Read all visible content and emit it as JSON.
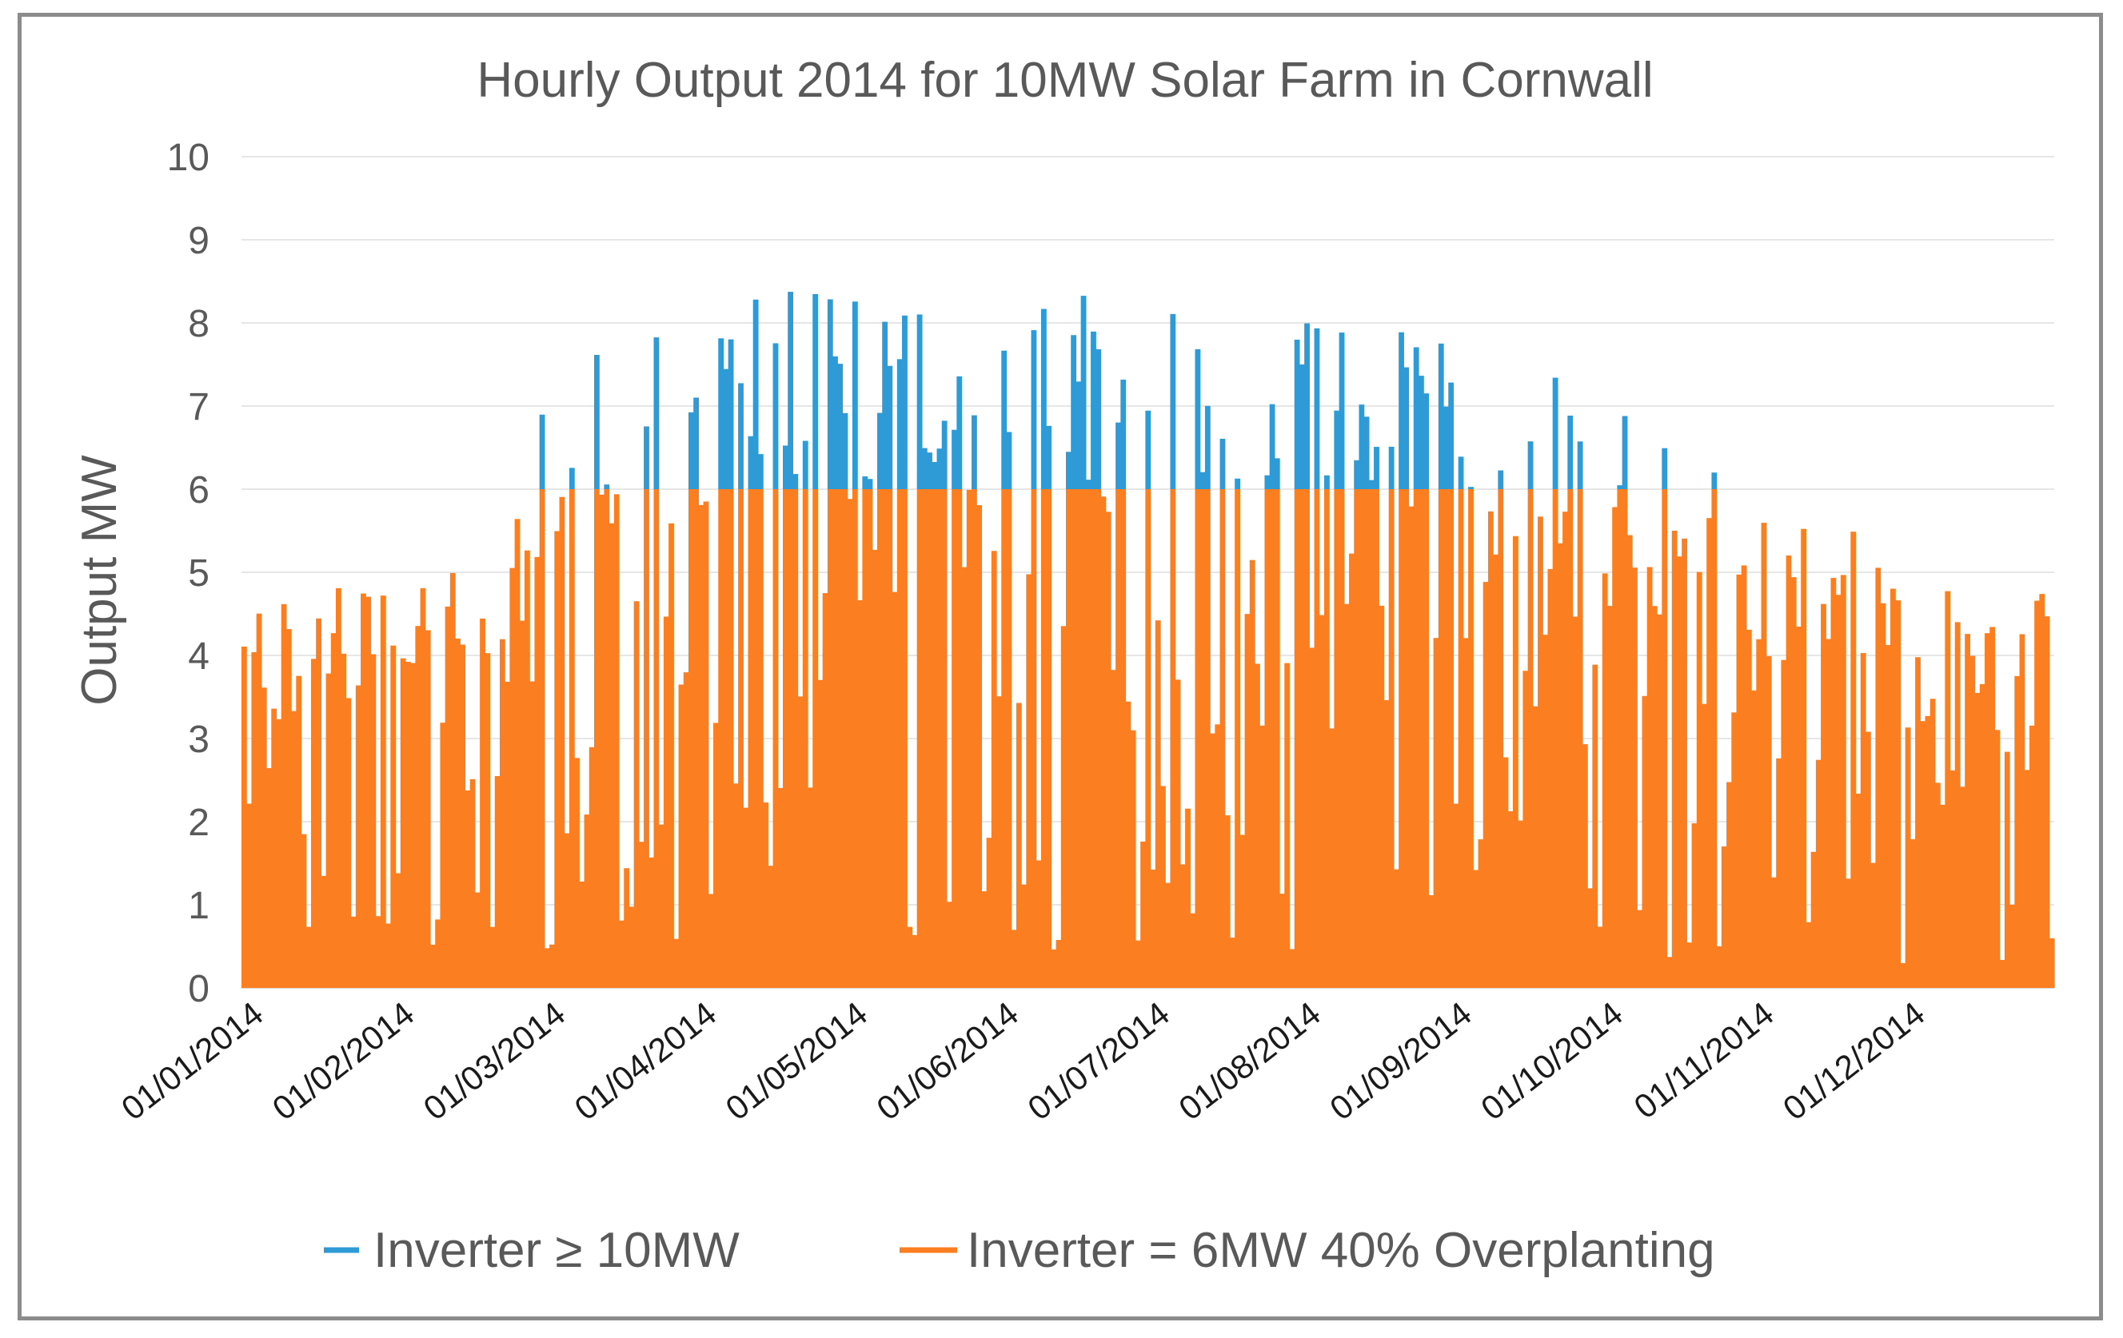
{
  "chart_data": {
    "type": "area",
    "title": "Hourly Output 2014 for 10MW Solar Farm in Cornwall",
    "xlabel": "",
    "ylabel": "Output MW",
    "ylim": [
      0,
      10
    ],
    "yticks": [
      "0",
      "1",
      "2",
      "3",
      "4",
      "5",
      "6",
      "7",
      "8",
      "9",
      "10"
    ],
    "grid": true,
    "legend_position": "bottom",
    "x_tick_labels": [
      "01/01/2014",
      "01/02/2014",
      "01/03/2014",
      "01/04/2014",
      "01/05/2014",
      "01/06/2014",
      "01/07/2014",
      "01/08/2014",
      "01/09/2014",
      "01/10/2014",
      "01/11/2014",
      "01/12/2014"
    ],
    "colors": {
      "inverter_10mw": "#2e9bd6",
      "inverter_6mw": "#fb7e21",
      "grid": "#e6e6e6",
      "text": "#595959"
    },
    "series": [
      {
        "name": "Inverter ≥ 10MW",
        "color_key": "inverter_10mw",
        "description": "Uncapped output; portions above 6 MW visible",
        "monthly_peak_mw": [
          4.8,
          5.2,
          7.5,
          8.5,
          8.3,
          8.5,
          8.3,
          8.1,
          7.8,
          7.0,
          5.9,
          4.8
        ]
      },
      {
        "name": "Inverter = 6MW 40% Overplanting",
        "color_key": "inverter_6mw",
        "description": "Output clipped at 6 MW inverter limit",
        "cap_mw": 6,
        "monthly_peak_mw": [
          4.8,
          5.2,
          6.0,
          6.0,
          6.0,
          6.0,
          6.0,
          6.0,
          6.0,
          6.0,
          5.9,
          4.8
        ]
      }
    ]
  },
  "legend": {
    "items": [
      {
        "label": "Inverter ≥ 10MW",
        "color_key": "inverter_10mw"
      },
      {
        "label": "Inverter = 6MW 40% Overplanting",
        "color_key": "inverter_6mw"
      }
    ]
  }
}
